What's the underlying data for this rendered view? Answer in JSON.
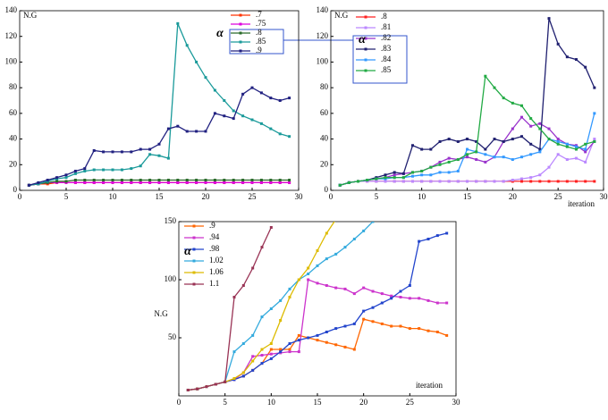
{
  "chart_data": [
    {
      "type": "line",
      "legend": "upper right",
      "annotations": [
        "N.G",
        "α"
      ],
      "x": [
        1,
        2,
        3,
        4,
        5,
        6,
        7,
        8,
        9,
        10,
        11,
        12,
        13,
        14,
        15,
        16,
        17,
        18,
        19,
        20,
        21,
        22,
        23,
        24,
        25,
        26,
        27,
        28,
        29
      ],
      "xlim": [
        0,
        30
      ],
      "xticks": [
        0,
        5,
        10,
        15,
        20,
        25,
        30
      ],
      "ylim": [
        0,
        140
      ],
      "yticks": [
        0,
        20,
        40,
        60,
        80,
        100,
        120,
        140
      ],
      "series": [
        {
          "name": ".7",
          "color": "#ff3300",
          "values": [
            4,
            5,
            5,
            6,
            6,
            6,
            6,
            6,
            6,
            6,
            6,
            6,
            6,
            6,
            6,
            6,
            6,
            6,
            6,
            6,
            6,
            6,
            6,
            6,
            6,
            6,
            6,
            6,
            6
          ]
        },
        {
          "name": ".75",
          "color": "#dd00dd",
          "values": [
            4,
            5,
            6,
            6,
            6,
            6,
            6,
            6,
            6,
            6,
            6,
            6,
            6,
            6,
            6,
            6,
            6,
            6,
            6,
            6,
            6,
            6,
            6,
            6,
            6,
            6,
            6,
            6,
            6
          ]
        },
        {
          "name": ".8",
          "color": "#2a6b2a",
          "values": [
            4,
            5,
            6,
            7,
            7,
            8,
            8,
            8,
            8,
            8,
            8,
            8,
            8,
            8,
            8,
            8,
            8,
            8,
            8,
            8,
            8,
            8,
            8,
            8,
            8,
            8,
            8,
            8,
            8
          ]
        },
        {
          "name": ".85",
          "color": "#1a9a9a",
          "values": [
            4,
            5,
            7,
            9,
            10,
            13,
            15,
            16,
            16,
            16,
            16,
            17,
            19,
            28,
            27,
            25,
            130,
            113,
            100,
            88,
            78,
            70,
            62,
            58,
            55,
            52,
            48,
            44,
            42
          ]
        },
        {
          "name": ".9",
          "color": "#202080",
          "values": [
            4,
            6,
            8,
            10,
            12,
            15,
            17,
            31,
            30,
            30,
            30,
            30,
            32,
            32,
            36,
            48,
            50,
            46,
            46,
            46,
            60,
            58,
            56,
            75,
            80,
            76,
            72,
            70,
            72
          ]
        }
      ]
    },
    {
      "type": "line",
      "legend": "upper left",
      "annotations": [
        "N.G",
        "α",
        "iteration"
      ],
      "x": [
        1,
        2,
        3,
        4,
        5,
        6,
        7,
        8,
        9,
        10,
        11,
        12,
        13,
        14,
        15,
        16,
        17,
        18,
        19,
        20,
        21,
        22,
        23,
        24,
        25,
        26,
        27,
        28,
        29
      ],
      "xlim": [
        0,
        30
      ],
      "xticks": [
        0,
        5,
        10,
        15,
        20,
        25,
        30
      ],
      "ylim": [
        0,
        140
      ],
      "yticks": [
        0,
        20,
        40,
        60,
        80,
        100,
        120,
        140
      ],
      "series": [
        {
          "name": ".8",
          "color": "#ff2020",
          "values": [
            4,
            6,
            7,
            7,
            7,
            7,
            7,
            7,
            7,
            7,
            7,
            7,
            7,
            7,
            7,
            7,
            7,
            7,
            7,
            7,
            7,
            7,
            7,
            7,
            7,
            7,
            7,
            7,
            7
          ]
        },
        {
          "name": ".81",
          "color": "#bb88ff",
          "values": [
            4,
            6,
            7,
            7,
            7,
            7,
            7,
            7,
            7,
            7,
            7,
            7,
            7,
            7,
            7,
            7,
            7,
            7,
            7,
            8,
            9,
            10,
            12,
            18,
            28,
            24,
            25,
            22,
            40
          ]
        },
        {
          "name": ".82",
          "color": "#9933cc",
          "values": [
            4,
            6,
            7,
            8,
            9,
            10,
            12,
            13,
            14,
            15,
            18,
            22,
            25,
            24,
            26,
            24,
            22,
            26,
            38,
            48,
            57,
            50,
            52,
            48,
            40,
            36,
            35,
            30,
            38
          ]
        },
        {
          "name": ".83",
          "color": "#202070",
          "values": [
            4,
            6,
            7,
            8,
            10,
            12,
            14,
            13,
            35,
            32,
            32,
            38,
            40,
            38,
            40,
            38,
            32,
            40,
            38,
            40,
            42,
            36,
            32,
            134,
            114,
            104,
            102,
            96,
            80
          ]
        },
        {
          "name": ".84",
          "color": "#3399ff",
          "values": [
            4,
            6,
            7,
            8,
            9,
            9,
            10,
            10,
            11,
            12,
            12,
            14,
            14,
            15,
            32,
            30,
            28,
            26,
            26,
            24,
            26,
            28,
            30,
            40,
            38,
            36,
            34,
            32,
            60
          ]
        },
        {
          "name": ".85",
          "color": "#22aa44",
          "values": [
            4,
            6,
            7,
            8,
            9,
            10,
            10,
            10,
            14,
            15,
            18,
            20,
            22,
            24,
            28,
            30,
            89,
            80,
            72,
            68,
            66,
            56,
            48,
            40,
            36,
            34,
            32,
            36,
            38
          ]
        }
      ]
    },
    {
      "type": "line",
      "legend": "upper left",
      "annotations": [
        "N.G",
        "α",
        "iteration"
      ],
      "x": [
        1,
        2,
        3,
        4,
        5,
        6,
        7,
        8,
        9,
        10,
        11,
        12,
        13,
        14,
        15,
        16,
        17,
        18,
        19,
        20,
        21,
        22,
        23,
        24,
        25,
        26,
        27,
        28,
        29
      ],
      "xlim": [
        0,
        30
      ],
      "xticks": [
        0,
        5,
        10,
        15,
        20,
        25,
        30
      ],
      "ylim": [
        0,
        150
      ],
      "yticks": [
        50,
        100,
        150
      ],
      "series": [
        {
          "name": ".9",
          "color": "#ff6600",
          "values": [
            5,
            6,
            8,
            10,
            12,
            14,
            17,
            22,
            28,
            40,
            40,
            40,
            52,
            50,
            48,
            46,
            44,
            42,
            40,
            66,
            64,
            62,
            60,
            60,
            58,
            58,
            56,
            55,
            52
          ]
        },
        {
          "name": ".94",
          "color": "#cc33cc",
          "values": [
            5,
            6,
            8,
            10,
            12,
            14,
            20,
            34,
            35,
            36,
            37,
            38,
            38,
            100,
            97,
            95,
            93,
            92,
            88,
            93,
            90,
            88,
            86,
            85,
            84,
            84,
            82,
            80,
            80
          ]
        },
        {
          "name": ".98",
          "color": "#2244cc",
          "values": [
            5,
            6,
            8,
            10,
            12,
            14,
            17,
            22,
            28,
            32,
            38,
            45,
            48,
            50,
            52,
            55,
            58,
            60,
            62,
            73,
            76,
            80,
            84,
            90,
            95,
            133,
            135,
            138,
            140
          ]
        },
        {
          "name": "1.02",
          "color": "#33aadd",
          "values": [
            5,
            6,
            8,
            10,
            12,
            38,
            45,
            52,
            68,
            75,
            82,
            92,
            100,
            105,
            112,
            118,
            122,
            128,
            135,
            142,
            150,
            null,
            null,
            null,
            null,
            null,
            null,
            null,
            null
          ]
        },
        {
          "name": "1.06",
          "color": "#ddbb00",
          "values": [
            5,
            6,
            8,
            10,
            12,
            15,
            20,
            30,
            40,
            45,
            65,
            85,
            100,
            110,
            125,
            140,
            152,
            null,
            null,
            null,
            null,
            null,
            null,
            null,
            null,
            null,
            null,
            null,
            null
          ]
        },
        {
          "name": "1.1",
          "color": "#993355",
          "values": [
            5,
            6,
            8,
            10,
            12,
            85,
            95,
            110,
            128,
            145,
            null,
            null,
            null,
            null,
            null,
            null,
            null,
            null,
            null,
            null,
            null,
            null,
            null,
            null,
            null,
            null,
            null,
            null,
            null
          ]
        }
      ]
    }
  ]
}
